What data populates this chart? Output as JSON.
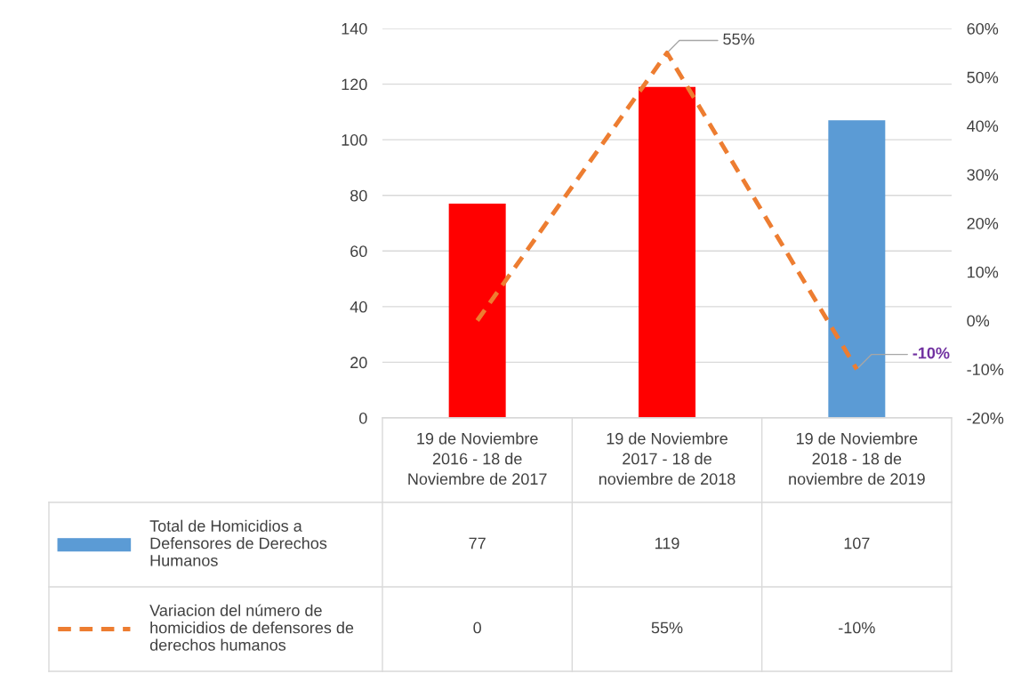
{
  "chart_data": {
    "type": "bar",
    "categories": [
      "19 de Noviembre\n2016 - 18 de\nNoviembre de 2017",
      "19 de Noviembre\n2017 - 18 de\nnoviembre de 2018",
      "19 de Noviembre\n2018 - 18 de\nnoviembre de 2019"
    ],
    "series": [
      {
        "name": "Total de Homicidios a\nDefensores de Derechos\nHumanos",
        "color": "#5b9bd5",
        "colors": [
          "#ff0000",
          "#ff0000",
          "#5b9bd5"
        ],
        "values": [
          77,
          119,
          107
        ],
        "value_labels": [
          "77",
          "119",
          "107"
        ]
      },
      {
        "name": "Variacion del número de\nhomicidios de defensores de\nderechos humanos",
        "type": "line",
        "axis": "y2",
        "color": "#ed7d31",
        "line_style": "dashed",
        "values": [
          0,
          55,
          -10
        ],
        "value_labels": [
          "0",
          "55%",
          "-10%"
        ]
      }
    ],
    "ylim": [
      0,
      140
    ],
    "yticks": [
      0,
      20,
      40,
      60,
      80,
      100,
      120,
      140
    ],
    "y2lim": [
      -20,
      60
    ],
    "y2ticks": [
      {
        "value": -20,
        "label": "-20%"
      },
      {
        "value": -10,
        "label": "-10%"
      },
      {
        "value": 0,
        "label": "0%"
      },
      {
        "value": 10,
        "label": "10%"
      },
      {
        "value": 20,
        "label": "20%"
      },
      {
        "value": 30,
        "label": "30%"
      },
      {
        "value": 40,
        "label": "40%"
      },
      {
        "value": 50,
        "label": "50%"
      },
      {
        "value": 60,
        "label": "60%"
      }
    ],
    "annotations": [
      {
        "text": "55%",
        "x": "19 de Noviembre\n2017 - 18 de\nnoviembre de 2018",
        "y": 131.25
      },
      {
        "text": "-10%",
        "x": "19 de Noviembre\n2018 - 18 de\nnoviembre de 2019",
        "y": 17.5
      }
    ],
    "grid": "y",
    "legend": "bottom left"
  }
}
